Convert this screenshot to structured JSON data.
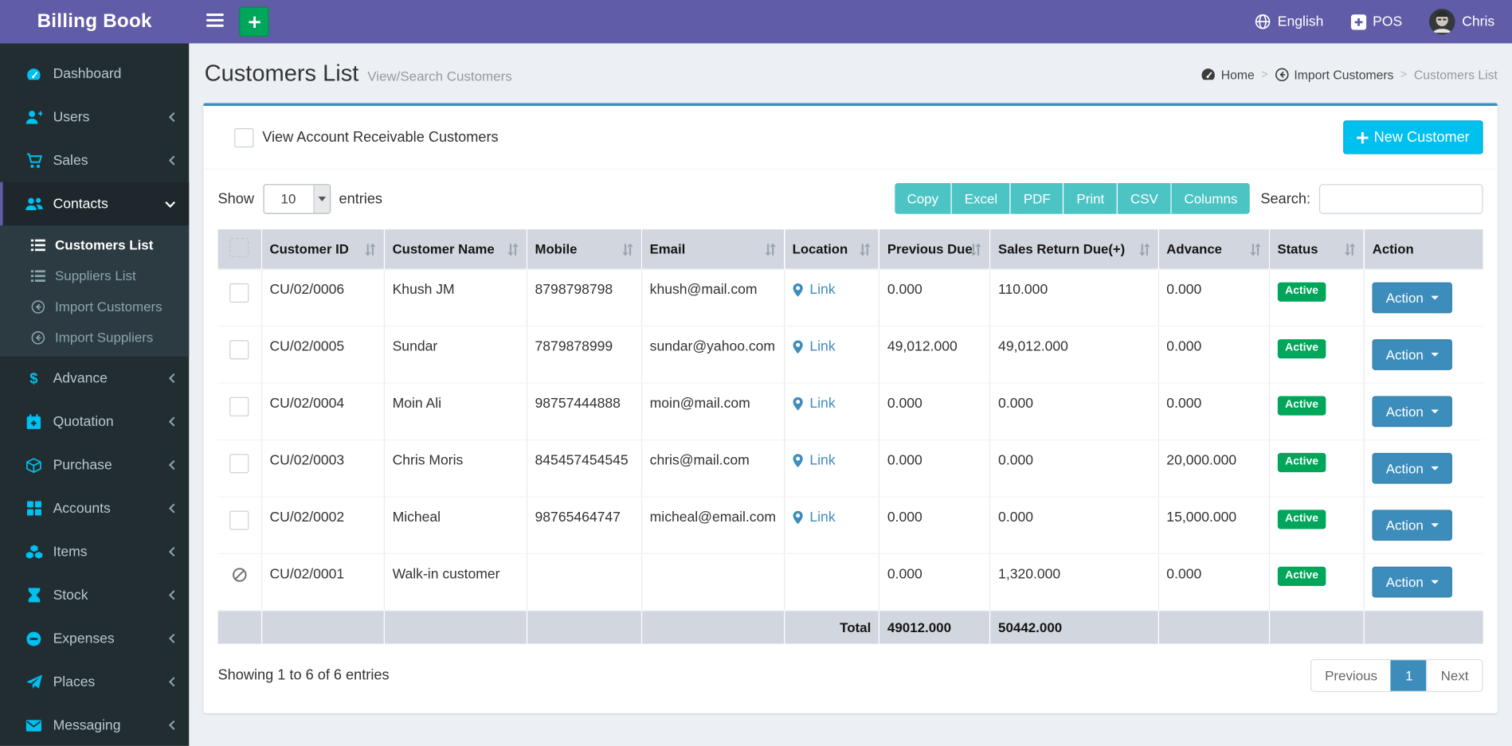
{
  "app": {
    "title": "Billing Book"
  },
  "navbar": {
    "language_label": "English",
    "pos_label": "POS",
    "user_name": "Chris"
  },
  "sidebar": {
    "items": [
      {
        "label": "Dashboard",
        "icon": "dashboard-icon"
      },
      {
        "label": "Users",
        "icon": "user-plus-icon",
        "chevron": "left"
      },
      {
        "label": "Sales",
        "icon": "cart-icon",
        "chevron": "left"
      },
      {
        "label": "Contacts",
        "icon": "users-icon",
        "chevron": "down",
        "active": true,
        "submenu": [
          {
            "label": "Customers List",
            "icon": "list-icon",
            "active": true
          },
          {
            "label": "Suppliers List",
            "icon": "list-icon"
          },
          {
            "label": "Import Customers",
            "icon": "import-icon"
          },
          {
            "label": "Import Suppliers",
            "icon": "import-icon"
          }
        ]
      },
      {
        "label": "Advance",
        "icon": "dollar-icon",
        "chevron": "left"
      },
      {
        "label": "Quotation",
        "icon": "calendar-plus-icon",
        "chevron": "left"
      },
      {
        "label": "Purchase",
        "icon": "cube-icon",
        "chevron": "left"
      },
      {
        "label": "Accounts",
        "icon": "grid-icon",
        "chevron": "left"
      },
      {
        "label": "Items",
        "icon": "cubes-icon",
        "chevron": "left"
      },
      {
        "label": "Stock",
        "icon": "hourglass-icon",
        "chevron": "left"
      },
      {
        "label": "Expenses",
        "icon": "minus-circle-icon",
        "chevron": "left"
      },
      {
        "label": "Places",
        "icon": "paper-plane-icon",
        "chevron": "left"
      },
      {
        "label": "Messaging",
        "icon": "envelope-icon",
        "chevron": "left"
      }
    ]
  },
  "page": {
    "title": "Customers List",
    "subtitle": "View/Search Customers",
    "breadcrumb": [
      {
        "label": "Home",
        "icon": "dashboard-icon",
        "link": true
      },
      {
        "label": "Import Customers",
        "icon": "import-icon",
        "link": true
      },
      {
        "label": "Customers List",
        "link": false
      }
    ]
  },
  "panel": {
    "receivable_label": "View Account Receivable Customers",
    "new_customer_label": "New Customer"
  },
  "datatable": {
    "show_label": "Show",
    "page_length": "10",
    "entries_label": "entries",
    "export_buttons": [
      "Copy",
      "Excel",
      "PDF",
      "Print",
      "CSV",
      "Columns"
    ],
    "search_label": "Search:",
    "search_value": "",
    "info": "Showing 1 to 6 of 6 entries",
    "pagination": {
      "previous": "Previous",
      "page": "1",
      "next": "Next"
    }
  },
  "table": {
    "columns": [
      {
        "type": "select",
        "label": "",
        "sortable": false
      },
      {
        "label": "Customer ID",
        "sortable": true
      },
      {
        "label": "Customer Name",
        "sortable": true
      },
      {
        "label": "Mobile",
        "sortable": true
      },
      {
        "label": "Email",
        "sortable": true
      },
      {
        "label": "Location",
        "sortable": true
      },
      {
        "label": "Previous Due",
        "sortable": true
      },
      {
        "label": "Sales Return Due(+)",
        "sortable": true
      },
      {
        "label": "Advance",
        "sortable": true
      },
      {
        "label": "Status",
        "sortable": true
      },
      {
        "label": "Action",
        "sortable": false
      }
    ],
    "link_label": "Link",
    "action_label": "Action",
    "rows": [
      {
        "customer_id": "CU/02/0006",
        "customer_name": "Khush JM",
        "mobile": "8798798798",
        "email": "khush@mail.com",
        "location_link": true,
        "previous_due": "0.000",
        "sales_return_due": "110.000",
        "advance": "0.000",
        "status": "Active",
        "selectable": true
      },
      {
        "customer_id": "CU/02/0005",
        "customer_name": "Sundar",
        "mobile": "7879878999",
        "email": "sundar@yahoo.com",
        "location_link": true,
        "previous_due": "49,012.000",
        "sales_return_due": "49,012.000",
        "advance": "0.000",
        "status": "Active",
        "selectable": true
      },
      {
        "customer_id": "CU/02/0004",
        "customer_name": "Moin Ali",
        "mobile": "98757444888",
        "email": "moin@mail.com",
        "location_link": true,
        "previous_due": "0.000",
        "sales_return_due": "0.000",
        "advance": "0.000",
        "status": "Active",
        "selectable": true
      },
      {
        "customer_id": "CU/02/0003",
        "customer_name": "Chris Moris",
        "mobile": "845457454545",
        "email": "chris@mail.com",
        "location_link": true,
        "previous_due": "0.000",
        "sales_return_due": "0.000",
        "advance": "20,000.000",
        "status": "Active",
        "selectable": true
      },
      {
        "customer_id": "CU/02/0002",
        "customer_name": "Micheal",
        "mobile": "98765464747",
        "email": "micheal@email.com",
        "location_link": true,
        "previous_due": "0.000",
        "sales_return_due": "0.000",
        "advance": "15,000.000",
        "status": "Active",
        "selectable": true
      },
      {
        "customer_id": "CU/02/0001",
        "customer_name": "Walk-in customer",
        "mobile": "",
        "email": "",
        "location_link": false,
        "previous_due": "0.000",
        "sales_return_due": "1,320.000",
        "advance": "0.000",
        "status": "Active",
        "selectable": false
      }
    ],
    "total": {
      "label": "Total",
      "previous_due": "49012.000",
      "sales_return_due": "50442.000"
    }
  },
  "colors": {
    "brand_purple": "#605ca8",
    "sidebar_dark": "#222d32",
    "info_blue": "#00c0ef",
    "primary_blue": "#3c8dbc",
    "success_green": "#00a65a",
    "export_teal": "#4dc4c4",
    "icon_cyan": "#00c0ef",
    "table_header_gray": "#d2d6de"
  }
}
